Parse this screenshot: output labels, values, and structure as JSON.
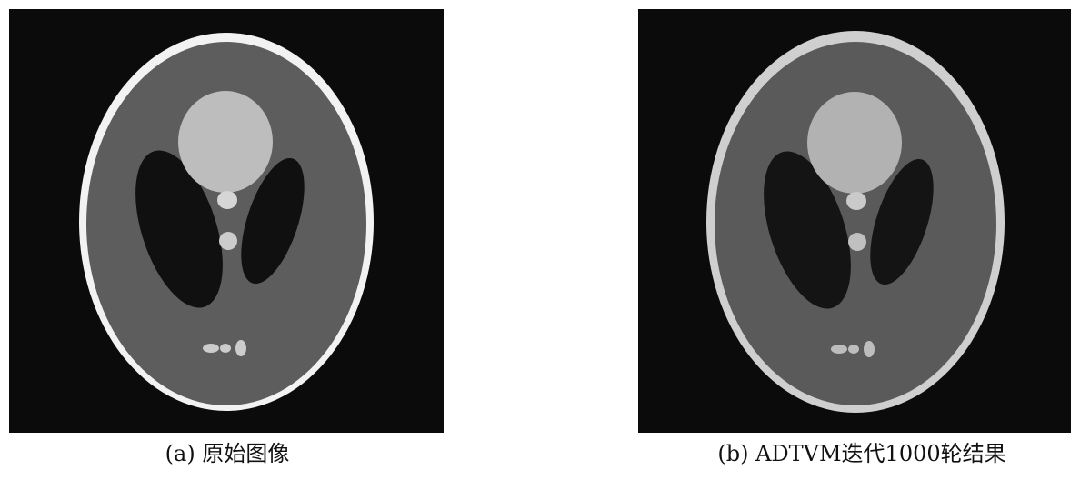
{
  "panels": [
    {
      "caption": "(a) 原始图像",
      "image": "shepp-logan-phantom-original"
    },
    {
      "caption": "(b) ADTVM迭代1000轮结果",
      "image": "shepp-logan-phantom-adtvm-reconstruction"
    }
  ],
  "colors": {
    "background": "#0b0b0b",
    "skull_a": "#f2f2f2",
    "skull_b": "#cfcfcf",
    "brain": "#5d5d5d",
    "dark_ellipse": "#101010",
    "top_blob": "#bdbdbd",
    "small_features": "#cccccc"
  }
}
